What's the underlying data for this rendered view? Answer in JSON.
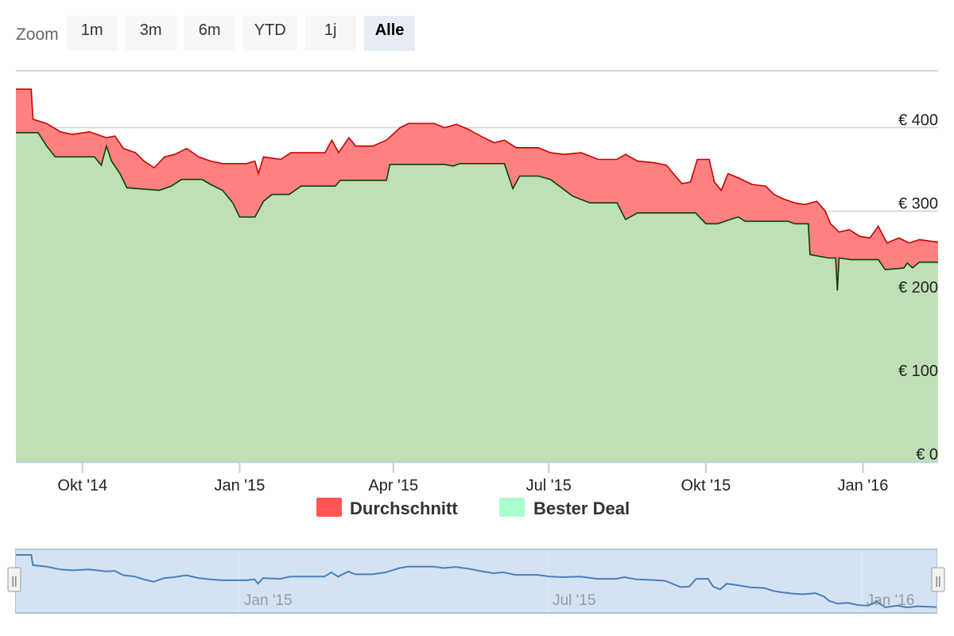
{
  "zoom": {
    "label": "Zoom",
    "buttons": [
      {
        "label": "1m",
        "active": false
      },
      {
        "label": "3m",
        "active": false
      },
      {
        "label": "6m",
        "active": false
      },
      {
        "label": "YTD",
        "active": false
      },
      {
        "label": "1j",
        "active": false
      },
      {
        "label": "Alle",
        "active": true
      }
    ]
  },
  "chart_data": {
    "type": "area",
    "title": "",
    "xlabel": "",
    "ylabel": "",
    "x_range": [
      "2014-08-23",
      "2016-02-14"
    ],
    "ylim": [
      0,
      450
    ],
    "y_ticks": [
      0,
      100,
      200,
      300,
      400
    ],
    "y_tick_labels": [
      "€ 0",
      "€ 100",
      "€ 200",
      "€ 300",
      "€ 400"
    ],
    "x_ticks": [
      "2014-10-01",
      "2015-01-01",
      "2015-04-01",
      "2015-07-01",
      "2015-10-01",
      "2016-01-01"
    ],
    "x_tick_labels": [
      "Okt '14",
      "Jan '15",
      "Apr '15",
      "Jul '15",
      "Okt '15",
      "Jan '16"
    ],
    "grid": true,
    "legend_position": "bottom-center",
    "series": [
      {
        "name": "Durchschnitt",
        "color": "#ff8080",
        "line_color": "#cc0000",
        "points": [
          [
            "2014-08-23",
            446
          ],
          [
            "2014-09-01",
            446
          ],
          [
            "2014-09-02",
            410
          ],
          [
            "2014-09-10",
            405
          ],
          [
            "2014-09-18",
            395
          ],
          [
            "2014-09-25",
            392
          ],
          [
            "2014-10-05",
            395
          ],
          [
            "2014-10-15",
            388
          ],
          [
            "2014-10-20",
            390
          ],
          [
            "2014-10-25",
            375
          ],
          [
            "2014-11-01",
            370
          ],
          [
            "2014-11-06",
            360
          ],
          [
            "2014-11-12",
            352
          ],
          [
            "2014-11-18",
            365
          ],
          [
            "2014-11-24",
            368
          ],
          [
            "2014-12-01",
            375
          ],
          [
            "2014-12-08",
            365
          ],
          [
            "2014-12-15",
            360
          ],
          [
            "2014-12-22",
            357
          ],
          [
            "2015-01-05",
            357
          ],
          [
            "2015-01-10",
            360
          ],
          [
            "2015-01-12",
            345
          ],
          [
            "2015-01-15",
            365
          ],
          [
            "2015-01-25",
            362
          ],
          [
            "2015-01-31",
            370
          ],
          [
            "2015-02-20",
            370
          ],
          [
            "2015-02-24",
            385
          ],
          [
            "2015-02-28",
            370
          ],
          [
            "2015-03-06",
            388
          ],
          [
            "2015-03-10",
            378
          ],
          [
            "2015-03-20",
            378
          ],
          [
            "2015-03-28",
            385
          ],
          [
            "2015-04-05",
            400
          ],
          [
            "2015-04-10",
            405
          ],
          [
            "2015-04-25",
            405
          ],
          [
            "2015-05-01",
            400
          ],
          [
            "2015-05-08",
            404
          ],
          [
            "2015-05-15",
            398
          ],
          [
            "2015-05-22",
            390
          ],
          [
            "2015-05-30",
            382
          ],
          [
            "2015-06-05",
            385
          ],
          [
            "2015-06-12",
            376
          ],
          [
            "2015-06-25",
            376
          ],
          [
            "2015-07-02",
            370
          ],
          [
            "2015-07-10",
            368
          ],
          [
            "2015-07-20",
            370
          ],
          [
            "2015-07-30",
            362
          ],
          [
            "2015-08-10",
            362
          ],
          [
            "2015-08-15",
            368
          ],
          [
            "2015-08-22",
            360
          ],
          [
            "2015-09-01",
            358
          ],
          [
            "2015-09-08",
            355
          ],
          [
            "2015-09-12",
            345
          ],
          [
            "2015-09-17",
            333
          ],
          [
            "2015-09-22",
            335
          ],
          [
            "2015-09-26",
            362
          ],
          [
            "2015-10-03",
            362
          ],
          [
            "2015-10-06",
            335
          ],
          [
            "2015-10-10",
            325
          ],
          [
            "2015-10-14",
            345
          ],
          [
            "2015-10-20",
            340
          ],
          [
            "2015-10-28",
            332
          ],
          [
            "2015-11-05",
            330
          ],
          [
            "2015-11-10",
            320
          ],
          [
            "2015-11-15",
            315
          ],
          [
            "2015-11-22",
            310
          ],
          [
            "2015-11-28",
            308
          ],
          [
            "2015-12-05",
            312
          ],
          [
            "2015-12-10",
            300
          ],
          [
            "2015-12-13",
            285
          ],
          [
            "2015-12-18",
            275
          ],
          [
            "2015-12-24",
            278
          ],
          [
            "2015-12-30",
            270
          ],
          [
            "2016-01-05",
            268
          ],
          [
            "2016-01-10",
            282
          ],
          [
            "2016-01-15",
            262
          ],
          [
            "2016-01-22",
            268
          ],
          [
            "2016-01-28",
            262
          ],
          [
            "2016-02-03",
            266
          ],
          [
            "2016-02-14",
            263
          ]
        ]
      },
      {
        "name": "Bester Deal",
        "color": "#a8f0c8",
        "line_color": "#004400",
        "points": [
          [
            "2014-08-23",
            394
          ],
          [
            "2014-09-05",
            394
          ],
          [
            "2014-09-10",
            378
          ],
          [
            "2014-09-15",
            365
          ],
          [
            "2014-10-08",
            365
          ],
          [
            "2014-10-12",
            355
          ],
          [
            "2014-10-15",
            378
          ],
          [
            "2014-10-18",
            360
          ],
          [
            "2014-10-23",
            345
          ],
          [
            "2014-10-27",
            328
          ],
          [
            "2014-11-15",
            325
          ],
          [
            "2014-11-22",
            330
          ],
          [
            "2014-11-28",
            338
          ],
          [
            "2014-12-10",
            338
          ],
          [
            "2014-12-15",
            332
          ],
          [
            "2014-12-22",
            325
          ],
          [
            "2014-12-28",
            310
          ],
          [
            "2015-01-01",
            293
          ],
          [
            "2015-01-10",
            293
          ],
          [
            "2015-01-15",
            312
          ],
          [
            "2015-01-20",
            320
          ],
          [
            "2015-01-30",
            320
          ],
          [
            "2015-02-06",
            330
          ],
          [
            "2015-02-26",
            330
          ],
          [
            "2015-03-01",
            337
          ],
          [
            "2015-03-28",
            337
          ],
          [
            "2015-03-30",
            356
          ],
          [
            "2015-05-01",
            356
          ],
          [
            "2015-05-06",
            354
          ],
          [
            "2015-05-10",
            357
          ],
          [
            "2015-06-05",
            357
          ],
          [
            "2015-06-10",
            327
          ],
          [
            "2015-06-14",
            342
          ],
          [
            "2015-06-25",
            342
          ],
          [
            "2015-07-02",
            338
          ],
          [
            "2015-07-15",
            318
          ],
          [
            "2015-07-25",
            310
          ],
          [
            "2015-08-10",
            310
          ],
          [
            "2015-08-15",
            290
          ],
          [
            "2015-08-22",
            298
          ],
          [
            "2015-09-25",
            298
          ],
          [
            "2015-10-01",
            285
          ],
          [
            "2015-10-08",
            285
          ],
          [
            "2015-10-15",
            290
          ],
          [
            "2015-10-20",
            293
          ],
          [
            "2015-10-24",
            288
          ],
          [
            "2015-11-10",
            288
          ],
          [
            "2015-11-18",
            288
          ],
          [
            "2015-11-22",
            285
          ],
          [
            "2015-11-30",
            285
          ],
          [
            "2015-12-01",
            248
          ],
          [
            "2015-12-12",
            244
          ],
          [
            "2015-12-16",
            244
          ],
          [
            "2015-12-17",
            205
          ],
          [
            "2015-12-18",
            244
          ],
          [
            "2015-12-25",
            242
          ],
          [
            "2016-01-10",
            242
          ],
          [
            "2016-01-14",
            230
          ],
          [
            "2016-01-25",
            232
          ],
          [
            "2016-01-27",
            238
          ],
          [
            "2016-01-30",
            232
          ],
          [
            "2016-02-03",
            239
          ],
          [
            "2016-02-14",
            239
          ]
        ]
      }
    ]
  },
  "legend": {
    "items": [
      {
        "label": "Durchschnitt",
        "color": "#ff5555"
      },
      {
        "label": "Bester Deal",
        "color": "#aaffcc"
      }
    ]
  },
  "navigator": {
    "tick_labels": [
      "Jan '15",
      "Jul '15",
      "Jan '16"
    ],
    "handle_glyph": "||"
  }
}
